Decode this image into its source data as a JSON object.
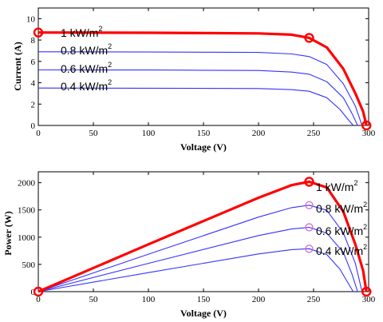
{
  "chart_data": [
    {
      "type": "line",
      "title": "",
      "xlabel": "Voltage (V)",
      "ylabel": "Current (A)",
      "xlim": [
        0,
        300
      ],
      "ylim": [
        0,
        11
      ],
      "xticks": [
        "0",
        "50",
        "100",
        "150",
        "200",
        "250",
        "300"
      ],
      "yticks": [
        "0",
        "2",
        "4",
        "6",
        "8",
        "10"
      ],
      "grid": false,
      "series": [
        {
          "name": "1 kW/m2",
          "color": "#ff0000",
          "highlight": true,
          "points": [
            [
              0,
              8.7
            ],
            [
              100,
              8.68
            ],
            [
              200,
              8.62
            ],
            [
              230,
              8.5
            ],
            [
              246,
              8.2
            ],
            [
              262,
              7.3
            ],
            [
              277,
              5.3
            ],
            [
              288,
              3.0
            ],
            [
              295,
              1.3
            ],
            [
              298,
              0
            ]
          ],
          "markers": [
            [
              0,
              8.7
            ],
            [
              246,
              8.2
            ],
            [
              298,
              0
            ]
          ]
        },
        {
          "name": "0.8 kW/m2",
          "color": "#3333ff",
          "points": [
            [
              0,
              6.9
            ],
            [
              100,
              6.88
            ],
            [
              200,
              6.84
            ],
            [
              230,
              6.7
            ],
            [
              246,
              6.45
            ],
            [
              262,
              5.7
            ],
            [
              277,
              3.9
            ],
            [
              288,
              1.8
            ],
            [
              294,
              0
            ]
          ]
        },
        {
          "name": "0.6 kW/m2",
          "color": "#3333ff",
          "points": [
            [
              0,
              5.2
            ],
            [
              100,
              5.19
            ],
            [
              200,
              5.15
            ],
            [
              230,
              5.0
            ],
            [
              246,
              4.8
            ],
            [
              262,
              4.1
            ],
            [
              277,
              2.6
            ],
            [
              285,
              1.1
            ],
            [
              290,
              0
            ]
          ]
        },
        {
          "name": "0.4 kW/m2",
          "color": "#3333ff",
          "points": [
            [
              0,
              3.5
            ],
            [
              100,
              3.49
            ],
            [
              200,
              3.46
            ],
            [
              230,
              3.35
            ],
            [
              246,
              3.2
            ],
            [
              262,
              2.6
            ],
            [
              274,
              1.5
            ],
            [
              281,
              0.6
            ],
            [
              286,
              0
            ]
          ]
        }
      ],
      "labels": [
        {
          "base": "1 kW/m",
          "sup": "2",
          "color": "#ff0000"
        },
        {
          "base": "0.8 kW/m",
          "sup": "2",
          "color": "#000000"
        },
        {
          "base": "0.6 kW/m",
          "sup": "2",
          "color": "#000000"
        },
        {
          "base": "0.4 kW/m",
          "sup": "2",
          "color": "#000000"
        }
      ]
    },
    {
      "type": "line",
      "title": "",
      "xlabel": "Voltage (V)",
      "ylabel": "Power (W)",
      "xlim": [
        0,
        300
      ],
      "ylim": [
        0,
        2200
      ],
      "xticks": [
        "0",
        "50",
        "100",
        "150",
        "200",
        "250",
        "300"
      ],
      "yticks": [
        "0",
        "500",
        "1000",
        "1500",
        "2000"
      ],
      "grid": false,
      "series": [
        {
          "name": "1 kW/m2",
          "color": "#ff0000",
          "highlight": true,
          "points": [
            [
              0,
              0
            ],
            [
              100,
              868
            ],
            [
              200,
              1724
            ],
            [
              230,
              1955
            ],
            [
              246,
              2017
            ],
            [
              262,
              1913
            ],
            [
              277,
              1468
            ],
            [
              288,
              864
            ],
            [
              295,
              384
            ],
            [
              298,
              0
            ]
          ],
          "markers": [
            [
              0,
              0
            ],
            [
              246,
              2017
            ],
            [
              298,
              0
            ]
          ]
        },
        {
          "name": "0.8 kW/m2",
          "color": "#3333ff",
          "points": [
            [
              0,
              0
            ],
            [
              100,
              688
            ],
            [
              200,
              1368
            ],
            [
              230,
              1541
            ],
            [
              246,
              1587
            ],
            [
              262,
              1493
            ],
            [
              277,
              1080
            ],
            [
              288,
              518
            ],
            [
              294,
              0
            ]
          ],
          "markers": [
            [
              246,
              1587
            ]
          ]
        },
        {
          "name": "0.6 kW/m2",
          "color": "#3333ff",
          "points": [
            [
              0,
              0
            ],
            [
              100,
              519
            ],
            [
              200,
              1030
            ],
            [
              230,
              1150
            ],
            [
              246,
              1181
            ],
            [
              262,
              1074
            ],
            [
              277,
              720
            ],
            [
              285,
              314
            ],
            [
              290,
              0
            ]
          ],
          "markers": [
            [
              246,
              1181
            ]
          ]
        },
        {
          "name": "0.4 kW/m2",
          "color": "#3333ff",
          "points": [
            [
              0,
              0
            ],
            [
              100,
              349
            ],
            [
              200,
              692
            ],
            [
              230,
              771
            ],
            [
              246,
              787
            ],
            [
              262,
              681
            ],
            [
              274,
              411
            ],
            [
              281,
              169
            ],
            [
              286,
              0
            ]
          ],
          "markers": [
            [
              246,
              787
            ]
          ]
        }
      ],
      "labels": [
        {
          "base": "1 kW/m",
          "sup": "2",
          "color": "#ff0000"
        },
        {
          "base": "0.8 kW/m",
          "sup": "2",
          "color": "#000000"
        },
        {
          "base": "0.6 kW/m",
          "sup": "2",
          "color": "#000000"
        },
        {
          "base": "0.4 kW/m",
          "sup": "2",
          "color": "#000000"
        }
      ]
    }
  ]
}
